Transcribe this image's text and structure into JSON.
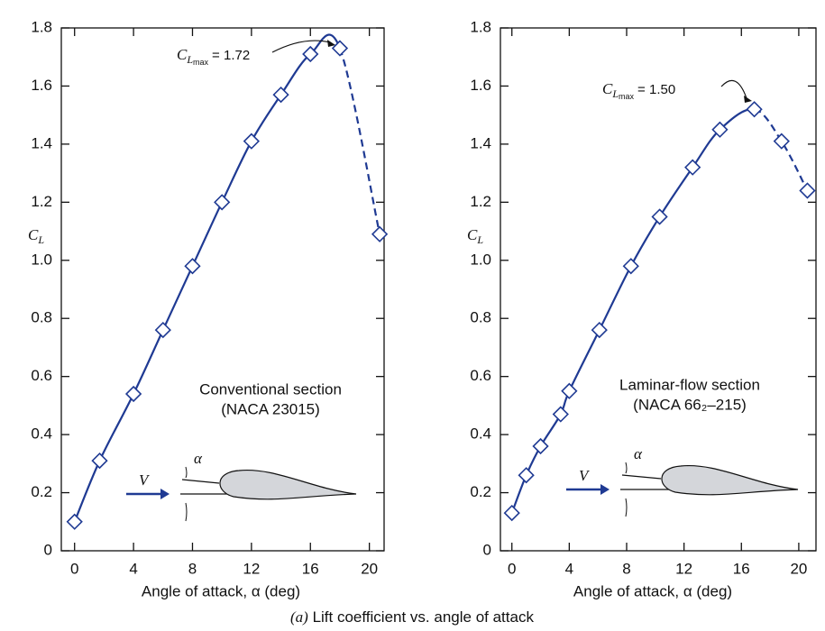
{
  "chart_data": [
    {
      "type": "line",
      "xlabel": "Angle of attack, α (deg)",
      "ylabel": "C",
      "ylabel_sub": "L",
      "annotation": {
        "text": "C",
        "sub": "L",
        "subsub": "max",
        "rest": "= 1.72"
      },
      "section_label": "Conventional section",
      "section_code": "(NACA 23015)",
      "flow_label": "V",
      "angle_label": "α",
      "x": [
        0,
        1.7,
        4,
        6,
        8,
        10,
        12,
        14,
        16,
        18,
        20.7
      ],
      "values": [
        0.1,
        0.31,
        0.54,
        0.76,
        0.98,
        1.2,
        1.41,
        1.57,
        1.71,
        1.73,
        1.09
      ],
      "color": "#1f3a93",
      "dashed_from_x": 18,
      "xlim": [
        -0.9,
        21
      ],
      "ylim": [
        0,
        1.8
      ],
      "xticks": [
        0,
        4,
        8,
        12,
        16,
        20
      ],
      "yticks": [
        0,
        0.2,
        0.4,
        0.6,
        0.8,
        {
          "value": 1,
          "label": "1.0"
        },
        1.2,
        1.4,
        1.6,
        1.8
      ]
    },
    {
      "type": "line",
      "xlabel": "Angle of attack, α (deg)",
      "ylabel": "C",
      "ylabel_sub": "L",
      "annotation": {
        "text": "C",
        "sub": "L",
        "subsub": "max",
        "rest": "= 1.50"
      },
      "section_label": "Laminar-flow section",
      "section_code": "(NACA 66₂–215)",
      "flow_label": "V",
      "angle_label": "α",
      "x": [
        0,
        1,
        2,
        3.4,
        4,
        6.1,
        8.3,
        10.3,
        12.6,
        14.5,
        16.9,
        18.8,
        20.6
      ],
      "values": [
        0.13,
        0.26,
        0.36,
        0.47,
        0.55,
        0.76,
        0.98,
        1.15,
        1.32,
        1.45,
        1.52,
        1.41,
        1.24
      ],
      "color": "#1f3a93",
      "dashed_from_x": 16.9,
      "xlim": [
        -0.8,
        21.2
      ],
      "ylim": [
        0,
        1.8
      ],
      "xticks": [
        0,
        4,
        8,
        12,
        16,
        20
      ],
      "yticks": [
        0,
        0.2,
        0.4,
        0.6,
        0.8,
        {
          "value": 1,
          "label": "1.0"
        },
        1.2,
        1.4,
        1.6,
        1.8
      ]
    }
  ],
  "caption": {
    "label": "(a)",
    "text": "Lift coefficient vs. angle of attack"
  }
}
